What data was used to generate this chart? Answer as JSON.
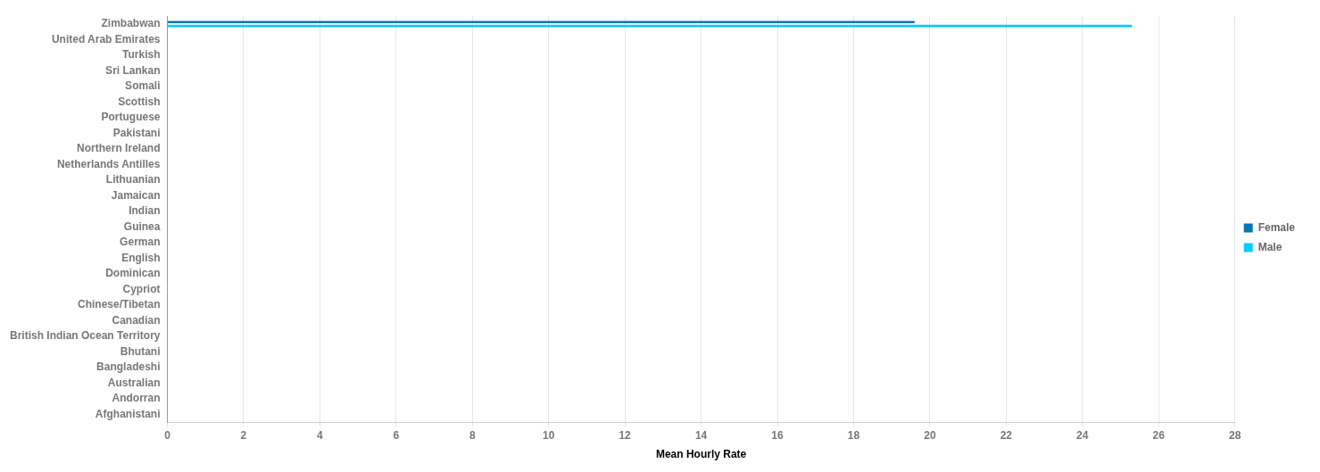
{
  "chart_data": {
    "type": "bar",
    "orientation": "horizontal",
    "xlabel": "Mean Hourly Rate",
    "categories": [
      "Zimbabwan",
      "United Arab Emirates",
      "Turkish",
      "Sri Lankan",
      "Somali",
      "Scottish",
      "Portuguese",
      "Pakistani",
      "Northern Ireland",
      "Netherlands Antilles",
      "Lithuanian",
      "Jamaican",
      "Indian",
      "Guinea",
      "German",
      "English",
      "Dominican",
      "Cypriot",
      "Chinese/Tibetan",
      "Canadian",
      "British Indian Ocean Territory",
      "Bhutani",
      "Bangladeshi",
      "Australian",
      "Andorran",
      "Afghanistani"
    ],
    "series": [
      {
        "name": "Female",
        "color": "#0077b5",
        "values": [
          19.6,
          null,
          null,
          null,
          null,
          null,
          null,
          null,
          null,
          null,
          null,
          null,
          null,
          null,
          null,
          null,
          null,
          null,
          null,
          null,
          null,
          null,
          null,
          null,
          null,
          null
        ]
      },
      {
        "name": "Male",
        "color": "#00ccff",
        "values": [
          25.3,
          null,
          null,
          null,
          null,
          null,
          null,
          null,
          null,
          null,
          null,
          null,
          null,
          null,
          null,
          null,
          null,
          null,
          null,
          null,
          null,
          null,
          null,
          null,
          null,
          null
        ]
      }
    ],
    "xlim": [
      0,
      28
    ],
    "xticks": [
      0,
      2,
      4,
      6,
      8,
      10,
      12,
      14,
      16,
      18,
      20,
      22,
      24,
      26,
      28
    ],
    "grid": "x",
    "legend": "right"
  }
}
